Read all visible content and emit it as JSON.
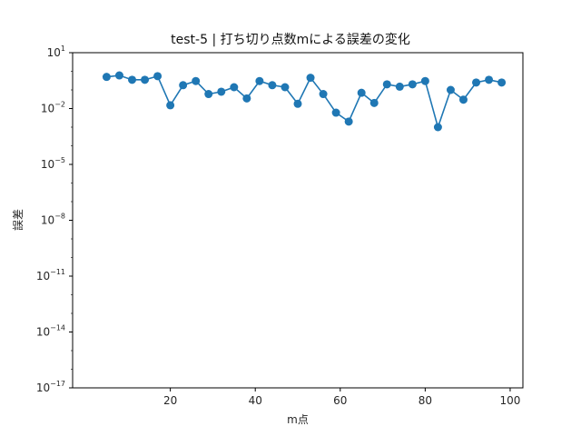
{
  "chart_data": {
    "type": "line",
    "title": "test-5 | 打ち切り点数mによる誤差の変化",
    "xlabel": "m点",
    "ylabel": "誤差",
    "yscale": "log",
    "xlim": [
      -3,
      103
    ],
    "ylim_exp": [
      -17,
      1
    ],
    "x_ticks": [
      {
        "value": 20,
        "label": "20"
      },
      {
        "value": 40,
        "label": "40"
      },
      {
        "value": 60,
        "label": "60"
      },
      {
        "value": 80,
        "label": "80"
      },
      {
        "value": 100,
        "label": "100"
      }
    ],
    "y_ticks": [
      {
        "exp": 1,
        "base": "10",
        "sup": "1"
      },
      {
        "exp": -2,
        "base": "10",
        "sup": "−2"
      },
      {
        "exp": -5,
        "base": "10",
        "sup": "−5"
      },
      {
        "exp": -8,
        "base": "10",
        "sup": "−8"
      },
      {
        "exp": -11,
        "base": "10",
        "sup": "−11"
      },
      {
        "exp": -14,
        "base": "10",
        "sup": "−14"
      },
      {
        "exp": -17,
        "base": "10",
        "sup": "−17"
      }
    ],
    "grid": false,
    "color": "#1f77b4",
    "series": [
      {
        "x": [
          5,
          8,
          11,
          14,
          17,
          20,
          23,
          26,
          29,
          32,
          35,
          38,
          41,
          44,
          47,
          50,
          53,
          56,
          59,
          62,
          65,
          68,
          71,
          74,
          77,
          80,
          83,
          86,
          89,
          92,
          95,
          98
        ],
        "y": [
          0.5,
          0.6,
          0.35,
          0.35,
          0.55,
          0.015,
          0.18,
          0.3,
          0.06,
          0.08,
          0.14,
          0.035,
          0.3,
          0.18,
          0.14,
          0.018,
          0.45,
          0.06,
          0.006,
          0.002,
          0.07,
          0.02,
          0.2,
          0.15,
          0.2,
          0.3,
          0.001,
          0.1,
          0.03,
          0.25,
          0.35,
          0.25
        ]
      }
    ]
  }
}
